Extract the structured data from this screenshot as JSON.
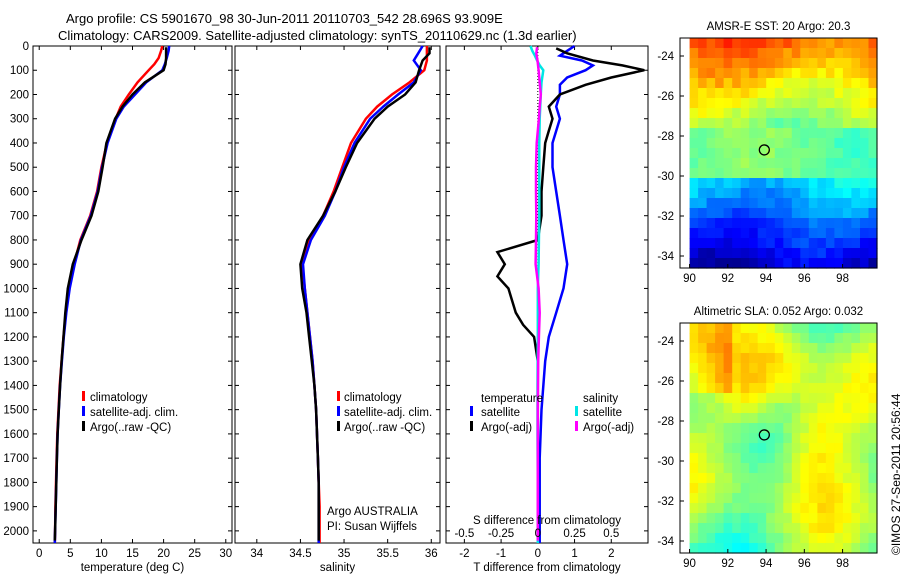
{
  "header": {
    "title_line1": "Argo profile: CS 5901670_98 30-Jun-2011 20110703_542 28.696S 93.909E",
    "title_line2": "Climatology: CARS2009. Satellite-adjusted climatology: synTS_20110629.nc (1.3d earlier)"
  },
  "stamp": "©IMOS 27-Sep-2011 20:56:44",
  "colors": {
    "red": "#ff0000",
    "blue": "#0000ff",
    "black": "#000000",
    "cyan": "#00e5e5",
    "magenta": "#ff00ff"
  },
  "chart_data": [
    {
      "type": "line",
      "panel": "temperature",
      "xlabel": "temperature (deg C)",
      "ylabel": "",
      "xlim": [
        -1,
        31
      ],
      "ylim": [
        2050,
        0
      ],
      "x_ticks": [
        0,
        5,
        10,
        15,
        20,
        25,
        30
      ],
      "y_ticks": [
        0,
        100,
        200,
        300,
        400,
        500,
        600,
        700,
        800,
        900,
        1000,
        1100,
        1200,
        1300,
        1400,
        1500,
        1600,
        1700,
        1800,
        1900,
        2000
      ],
      "legend": [
        "climatology",
        "satellite-adj. clim.",
        "Argo(..raw -QC)"
      ],
      "series": [
        {
          "name": "climatology",
          "color": "red",
          "depth": [
            0,
            20,
            50,
            75,
            100,
            150,
            200,
            250,
            300,
            400,
            500,
            600,
            700,
            800,
            900,
            1000,
            1100,
            1200,
            1300,
            1400,
            1500,
            1600,
            1700,
            1800,
            1900,
            2000,
            2050
          ],
          "values": [
            19.8,
            19.6,
            19.2,
            18.5,
            17.6,
            15.8,
            14.4,
            13.1,
            12.3,
            10.9,
            10.0,
            9.3,
            8.2,
            6.6,
            5.6,
            4.8,
            4.3,
            3.9,
            3.6,
            3.3,
            3.1,
            2.9,
            2.8,
            2.7,
            2.6,
            2.55,
            2.5
          ]
        },
        {
          "name": "satellite-adj. clim.",
          "color": "blue",
          "depth": [
            0,
            20,
            50,
            75,
            100,
            150,
            200,
            250,
            300,
            400,
            500,
            600,
            700,
            800,
            900,
            1000,
            1100,
            1200,
            1300,
            1400,
            1500,
            1600,
            1700,
            1800,
            1900,
            2000,
            2050
          ],
          "values": [
            20.9,
            20.8,
            20.5,
            20.2,
            19.8,
            17.2,
            15.4,
            13.6,
            12.4,
            11.0,
            10.1,
            9.4,
            8.3,
            6.7,
            5.7,
            4.9,
            4.35,
            3.95,
            3.65,
            3.35,
            3.15,
            2.95,
            2.85,
            2.75,
            2.65,
            2.55,
            2.5
          ]
        },
        {
          "name": "Argo(..raw -QC)",
          "color": "black",
          "depth": [
            5,
            20,
            50,
            75,
            100,
            150,
            200,
            250,
            300,
            400,
            500,
            600,
            700,
            800,
            900,
            1000,
            1100,
            1200,
            1300,
            1400,
            1500,
            1600,
            1700,
            1800,
            1900,
            2000,
            2040
          ],
          "values": [
            20.4,
            20.4,
            20.4,
            20.3,
            20.0,
            17.0,
            15.0,
            13.4,
            12.2,
            10.8,
            10.2,
            9.5,
            8.4,
            6.8,
            5.4,
            4.6,
            4.2,
            3.9,
            3.6,
            3.35,
            3.15,
            2.95,
            2.85,
            2.75,
            2.65,
            2.55,
            2.5
          ]
        }
      ]
    },
    {
      "type": "line",
      "panel": "salinity",
      "xlabel": "salinity",
      "ylabel": "",
      "xlim": [
        33.75,
        36.1
      ],
      "ylim": [
        2050,
        0
      ],
      "x_ticks": [
        34,
        34.5,
        35,
        35.5,
        36
      ],
      "x_tick_labels": [
        "34",
        "34.5",
        "35",
        "35.5",
        "36"
      ],
      "legend": [
        "climatology",
        "satellite-adj. clim.",
        "Argo(..raw -QC)"
      ],
      "annotation": [
        "Argo AUSTRALIA",
        "PI: Susan Wijffels"
      ],
      "series": [
        {
          "name": "climatology",
          "color": "red",
          "depth": [
            0,
            30,
            60,
            100,
            150,
            200,
            250,
            300,
            400,
            500,
            600,
            700,
            800,
            900,
            1000,
            1100,
            1200,
            1300,
            1400,
            1500,
            1600,
            1700,
            1800,
            1900,
            2000,
            2050
          ],
          "values": [
            35.95,
            35.95,
            35.95,
            35.92,
            35.75,
            35.55,
            35.38,
            35.25,
            35.08,
            34.98,
            34.88,
            34.76,
            34.6,
            34.52,
            34.55,
            34.58,
            34.61,
            34.64,
            34.66,
            34.68,
            34.69,
            34.7,
            34.71,
            34.72,
            34.72,
            34.72
          ]
        },
        {
          "name": "satellite-adj. clim.",
          "color": "blue",
          "depth": [
            0,
            30,
            60,
            100,
            150,
            200,
            250,
            300,
            400,
            500,
            600,
            700,
            800,
            900,
            1000,
            1100,
            1200,
            1300,
            1400,
            1500,
            1600,
            1700,
            1800,
            1900,
            2000,
            2050
          ],
          "values": [
            35.9,
            35.85,
            35.8,
            35.88,
            35.8,
            35.62,
            35.45,
            35.3,
            35.12,
            35.0,
            34.9,
            34.78,
            34.62,
            34.53,
            34.55,
            34.58,
            34.61,
            34.64,
            34.66,
            34.68,
            34.69,
            34.7,
            34.71,
            34.71,
            34.71,
            34.71
          ]
        },
        {
          "name": "Argo(..raw -QC)",
          "color": "black",
          "depth": [
            5,
            30,
            60,
            100,
            150,
            200,
            250,
            300,
            400,
            500,
            600,
            700,
            800,
            900,
            1000,
            1100,
            1200,
            1300,
            1400,
            1500,
            1600,
            1700,
            1800,
            1900,
            2000,
            2040
          ],
          "values": [
            35.98,
            35.98,
            35.9,
            35.86,
            35.82,
            35.7,
            35.5,
            35.35,
            35.15,
            35.02,
            34.9,
            34.76,
            34.58,
            34.5,
            34.52,
            34.57,
            34.6,
            34.63,
            34.66,
            34.68,
            34.69,
            34.7,
            34.71,
            34.71,
            34.71,
            34.71
          ]
        }
      ]
    },
    {
      "type": "line",
      "panel": "difference",
      "xlabel": "T difference from climatology",
      "xlabel_top": "S difference from climatology",
      "xlim": [
        -2.5,
        3
      ],
      "ylim": [
        2050,
        0
      ],
      "x_ticks": [
        -2,
        -1,
        0,
        1,
        2
      ],
      "x_ticks_s": [
        -0.5,
        -0.25,
        0,
        0.25,
        0.5
      ],
      "x_tick_labels_s": [
        "-0.5",
        "-0.25",
        "0",
        "0.25",
        "0.5"
      ],
      "legend_temperature": {
        "heading": "temperature",
        "items": [
          "satellite",
          "Argo(-adj)"
        ]
      },
      "legend_salinity": {
        "heading": "salinity",
        "items": [
          "satellite",
          "Argo(-adj)"
        ]
      },
      "series": [
        {
          "name": "temperature satellite",
          "color": "blue",
          "depth": [
            0,
            20,
            40,
            60,
            80,
            100,
            130,
            160,
            200,
            250,
            300,
            350,
            400,
            500,
            600,
            700,
            800,
            900,
            1000,
            1100,
            1200,
            1300,
            1500,
            1700,
            1900,
            2050
          ],
          "values": [
            1.0,
            0.8,
            0.6,
            1.2,
            1.5,
            1.3,
            0.8,
            0.6,
            0.6,
            0.5,
            0.6,
            0.5,
            0.4,
            0.4,
            0.5,
            0.6,
            0.7,
            0.8,
            0.7,
            0.5,
            0.3,
            0.2,
            0.1,
            0.05,
            0.05,
            0.05
          ]
        },
        {
          "name": "temperature Argo(-adj)",
          "color": "black",
          "depth": [
            10,
            30,
            60,
            80,
            100,
            130,
            160,
            200,
            250,
            300,
            350,
            400,
            500,
            600,
            700,
            800,
            850,
            900,
            950,
            1000,
            1050,
            1100,
            1150,
            1200,
            1300,
            1500,
            1700,
            1900,
            2040
          ],
          "values": [
            0.5,
            0.8,
            1.5,
            2.3,
            2.9,
            2.0,
            1.3,
            0.6,
            0.3,
            0.4,
            0.3,
            0.2,
            0.15,
            0.1,
            0.1,
            0.0,
            -1.1,
            -0.9,
            -1.1,
            -0.8,
            -0.7,
            -0.6,
            -0.4,
            -0.1,
            0.0,
            0.0,
            0.0,
            0.0,
            0.0
          ]
        },
        {
          "name": "salinity satellite",
          "color": "cyan",
          "depth": [
            0,
            20,
            40,
            60,
            80,
            100,
            150,
            200,
            300,
            400,
            500,
            600,
            700,
            800,
            900,
            1000,
            1200,
            1400,
            1600,
            1800,
            2000,
            2050
          ],
          "values": [
            -0.2,
            -0.15,
            -0.08,
            -0.02,
            0.05,
            0.15,
            0.1,
            0.08,
            0.05,
            0.04,
            0.04,
            0.04,
            0.04,
            0.03,
            0.02,
            0.0,
            0.0,
            -0.01,
            -0.01,
            0.0,
            0.0,
            0.0
          ]
        },
        {
          "name": "salinity Argo(-adj)",
          "color": "magenta",
          "depth": [
            5,
            30,
            60,
            100,
            150,
            200,
            250,
            300,
            400,
            500,
            600,
            700,
            800,
            900,
            1000,
            1100,
            1200,
            1300,
            1500,
            1700,
            1900,
            2040
          ],
          "values": [
            -0.02,
            -0.04,
            -0.01,
            0.02,
            0.05,
            0.08,
            0.05,
            0.03,
            -0.03,
            -0.05,
            -0.05,
            -0.04,
            -0.05,
            -0.06,
            0.02,
            0.05,
            0.03,
            0.01,
            0.0,
            0.0,
            0.0,
            0.0
          ]
        }
      ]
    },
    {
      "type": "heatmap",
      "panel": "sst",
      "title": "AMSR-E SST: 20 Argo: 20.3",
      "xlim": [
        89.5,
        99.8
      ],
      "ylim": [
        -34.6,
        -23.1
      ],
      "x_ticks": [
        90,
        92,
        94,
        96,
        98
      ],
      "y_ticks": [
        -24,
        -26,
        -28,
        -30,
        -32,
        -34
      ],
      "marker": {
        "lon": 93.909,
        "lat": -28.696
      }
    },
    {
      "type": "heatmap",
      "panel": "sla",
      "title": "Altimetric SLA: 0.052 Argo: 0.032",
      "xlim": [
        89.5,
        99.8
      ],
      "ylim": [
        -34.6,
        -23.1
      ],
      "x_ticks": [
        90,
        92,
        94,
        96,
        98
      ],
      "y_ticks": [
        -24,
        -26,
        -28,
        -30,
        -32,
        -34
      ],
      "marker": {
        "lon": 93.909,
        "lat": -28.696
      }
    }
  ]
}
